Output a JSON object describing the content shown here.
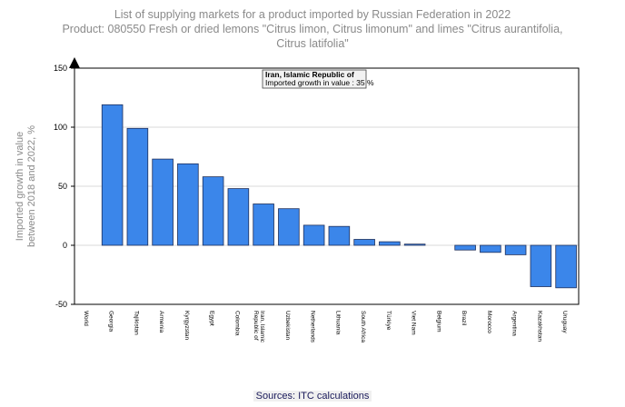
{
  "title": {
    "line1": "List of supplying markets for a product imported by Russian Federation in 2022",
    "line2": "Product: 080550 Fresh or dried lemons \"Citrus limon, Citrus limonum\" and limes \"Citrus aurantifolia,",
    "line3": "Citrus latifolia\""
  },
  "tooltip": {
    "line1": "Iran, Islamic Republic of",
    "line2": "Imported growth in value : 35 %"
  },
  "source": "Sources: ITC calculations",
  "colors": {
    "bar": "#3b86ea",
    "bar_stroke": "#1f2f5a",
    "grid": "#d9d9d9",
    "axis": "#000000",
    "ylabel": "#8a8a8a"
  },
  "chart_data": {
    "type": "bar",
    "ylabel_line1": "Imported growth in value",
    "ylabel_line2": "between 2018 and 2022, %",
    "xlabel": "",
    "ylim": [
      -50,
      150
    ],
    "yticks": [
      150,
      100,
      50,
      0,
      -50
    ],
    "grid": true,
    "categories": [
      "World",
      "Georgia",
      "Tajikistan",
      "Armenia",
      "Kyrgyzstan",
      "Egypt",
      "Colombia",
      "Iran, Islamic Republic of",
      "Uzbekistan",
      "Netherlands",
      "Lithuania",
      "South Africa",
      "Türkiye",
      "Viet Nam",
      "Belgium",
      "Brazil",
      "Morocco",
      "Argentina",
      "Kazakhstan",
      "Uruguay"
    ],
    "values": [
      null,
      119,
      99,
      73,
      69,
      58,
      48,
      35,
      31,
      17,
      16,
      5,
      3,
      1,
      null,
      -4,
      -6,
      -8,
      -35,
      -36
    ]
  }
}
